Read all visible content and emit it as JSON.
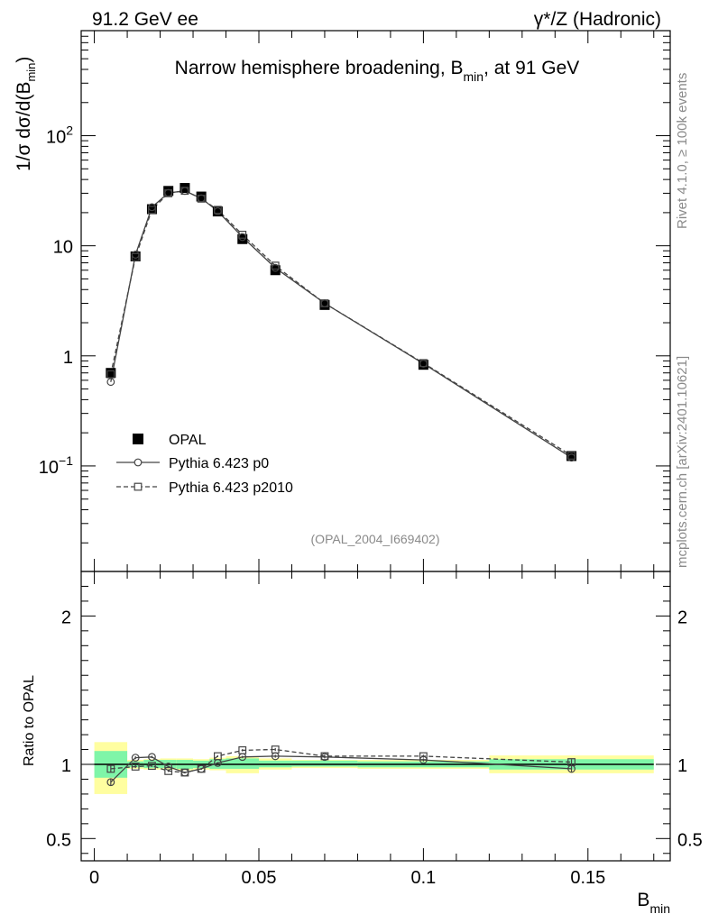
{
  "header": {
    "left": "91.2 GeV ee",
    "right": "γ*/Z (Hadronic)"
  },
  "side_labels": {
    "rivet": "Rivet 4.1.0, ≥ 100k events",
    "mcplots": "mcplots.cern.ch [arXiv:2401.10621]"
  },
  "chart_data": {
    "type": "line",
    "title": "Narrow hemisphere broadening, B_min, at 91 GeV",
    "title_main": "Narrow hemisphere broadening, B",
    "title_sub": "min",
    "title_tail": ", at 91 GeV",
    "analysis_id": "(OPAL_2004_I669402)",
    "xlabel": "B",
    "xlabel_sub": "min",
    "ylabel": "1/σ  dσ/d(B",
    "ylabel_sub": "min",
    "ylabel_tail": ")",
    "ratio_ylabel": "Ratio to OPAL",
    "xlim": [
      -0.004,
      0.175
    ],
    "ylim_log": [
      0.011,
      900
    ],
    "ratio_ylim": [
      0.35,
      2.3
    ],
    "x_ticks": [
      {
        "v": 0,
        "label": "0"
      },
      {
        "v": 0.05,
        "label": "0.05"
      },
      {
        "v": 0.1,
        "label": "0.1"
      },
      {
        "v": 0.15,
        "label": "0.15"
      }
    ],
    "y_ticks": [
      {
        "v": 0.1,
        "base": "10",
        "exp": "−1"
      },
      {
        "v": 1,
        "base": "1",
        "exp": ""
      },
      {
        "v": 10,
        "base": "10",
        "exp": ""
      },
      {
        "v": 100,
        "base": "10",
        "exp": "2"
      }
    ],
    "ratio_ticks": [
      {
        "v": 0.5,
        "label": "0.5"
      },
      {
        "v": 1,
        "label": "1"
      },
      {
        "v": 2,
        "label": "2"
      }
    ],
    "legend": [
      {
        "name": "OPAL",
        "style": "data"
      },
      {
        "name": "Pythia 6.423 p0",
        "style": "solid-circle"
      },
      {
        "name": "Pythia 6.423 p2010",
        "style": "dashed-square"
      }
    ],
    "bins": [
      [
        0,
        0.01
      ],
      [
        0.01,
        0.015
      ],
      [
        0.015,
        0.02
      ],
      [
        0.02,
        0.025
      ],
      [
        0.025,
        0.03
      ],
      [
        0.03,
        0.035
      ],
      [
        0.035,
        0.04
      ],
      [
        0.04,
        0.05
      ],
      [
        0.05,
        0.06
      ],
      [
        0.06,
        0.08
      ],
      [
        0.08,
        0.12
      ],
      [
        0.12,
        0.17
      ]
    ],
    "x": [
      0.005,
      0.0125,
      0.0175,
      0.0225,
      0.0275,
      0.0325,
      0.0375,
      0.045,
      0.055,
      0.07,
      0.1,
      0.145
    ],
    "series": [
      {
        "name": "OPAL",
        "values": [
          0.7,
          8.0,
          21.5,
          31.5,
          33.5,
          28.0,
          20.5,
          11.5,
          6.0,
          2.9,
          0.83,
          0.123
        ]
      },
      {
        "name": "Pythia 6.423 p0",
        "values": [
          0.58,
          8.3,
          22.4,
          30.2,
          31.5,
          27.0,
          20.6,
          12.0,
          6.3,
          3.0,
          0.85,
          0.119
        ]
      },
      {
        "name": "Pythia 6.423 p2010",
        "values": [
          0.68,
          7.9,
          21.2,
          30.0,
          31.6,
          26.8,
          21.2,
          12.6,
          6.6,
          3.0,
          0.86,
          0.124
        ]
      }
    ],
    "ratios": {
      "Pythia 6.423 p0": [
        0.88,
        1.045,
        1.05,
        0.985,
        0.945,
        0.97,
        1.01,
        1.05,
        1.055,
        1.05,
        1.03,
        0.97
      ],
      "Pythia 6.423 p2010": [
        0.97,
        0.985,
        0.99,
        0.955,
        0.945,
        0.97,
        1.055,
        1.095,
        1.1,
        1.055,
        1.055,
        1.015
      ]
    },
    "ratio_errors": [
      0.025,
      0.01,
      0.008,
      0.006,
      0.006,
      0.006,
      0.006,
      0.008,
      0.01,
      0.01,
      0.01,
      0.02
    ],
    "band_stat": [
      [
        0.91,
        1.09
      ],
      [
        0.98,
        1.02
      ],
      [
        0.975,
        1.03
      ],
      [
        0.975,
        1.03
      ],
      [
        0.97,
        1.03
      ],
      [
        0.975,
        1.025
      ],
      [
        0.97,
        1.035
      ],
      [
        0.97,
        1.04
      ],
      [
        0.98,
        1.025
      ],
      [
        0.985,
        1.025
      ],
      [
        0.98,
        1.02
      ],
      [
        0.965,
        1.035
      ]
    ],
    "band_total": [
      [
        0.8,
        1.15
      ],
      [
        0.97,
        1.03
      ],
      [
        0.965,
        1.035
      ],
      [
        0.965,
        1.04
      ],
      [
        0.96,
        1.04
      ],
      [
        0.965,
        1.035
      ],
      [
        0.96,
        1.045
      ],
      [
        0.94,
        1.055
      ],
      [
        0.965,
        1.04
      ],
      [
        0.975,
        1.03
      ],
      [
        0.97,
        1.03
      ],
      [
        0.94,
        1.06
      ]
    ],
    "colors": {
      "band_stat": "#7ff5a8",
      "band_total": "#fffea0",
      "model": "#444444",
      "data": "#000000",
      "muted_text": "#8a8a8a"
    }
  }
}
